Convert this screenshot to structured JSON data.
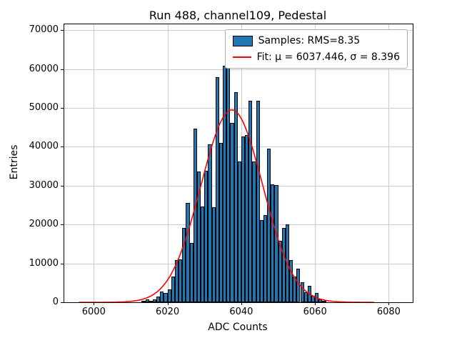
{
  "chart_data": {
    "type": "bar",
    "title": "Run 488, channel109, Pedestal",
    "xlabel": "ADC Counts",
    "ylabel": "Entries",
    "xlim": [
      5992,
      6086.5
    ],
    "ylim": [
      0,
      71500
    ],
    "xticks": [
      6000,
      6020,
      6040,
      6060,
      6080
    ],
    "yticks": [
      0,
      10000,
      20000,
      30000,
      40000,
      50000,
      60000,
      70000
    ],
    "grid": true,
    "legend_position": "upper-right",
    "hist": {
      "bin_start": 6013,
      "bin_width": 1,
      "counts": [
        400,
        700,
        450,
        800,
        1400,
        2700,
        2300,
        3400,
        6600,
        10900,
        11100,
        19200,
        25600,
        15300,
        44700,
        33700,
        24600,
        33800,
        40700,
        24500,
        57900,
        40900,
        60900,
        62200,
        46100,
        54100,
        36200,
        42600,
        43000,
        51800,
        36200,
        51900,
        21100,
        22400,
        39500,
        30400,
        30100,
        15900,
        19100,
        20000,
        10900,
        6600,
        8600,
        5100,
        2600,
        4300,
        1600,
        2400,
        700,
        400
      ]
    },
    "fit": {
      "mu": 6037.446,
      "sigma": 8.396,
      "amplitude": 49500,
      "x_start": 5996,
      "x_end": 6076
    },
    "rms": 8.35,
    "legend": [
      {
        "label": "Samples: RMS=8.35",
        "type": "patch"
      },
      {
        "label": "Fit: μ = 6037.446, σ = 8.396",
        "type": "line"
      }
    ],
    "colors": {
      "bar": "#1f77b4",
      "fit": "#ff0000",
      "grid": "#cccccc"
    }
  }
}
